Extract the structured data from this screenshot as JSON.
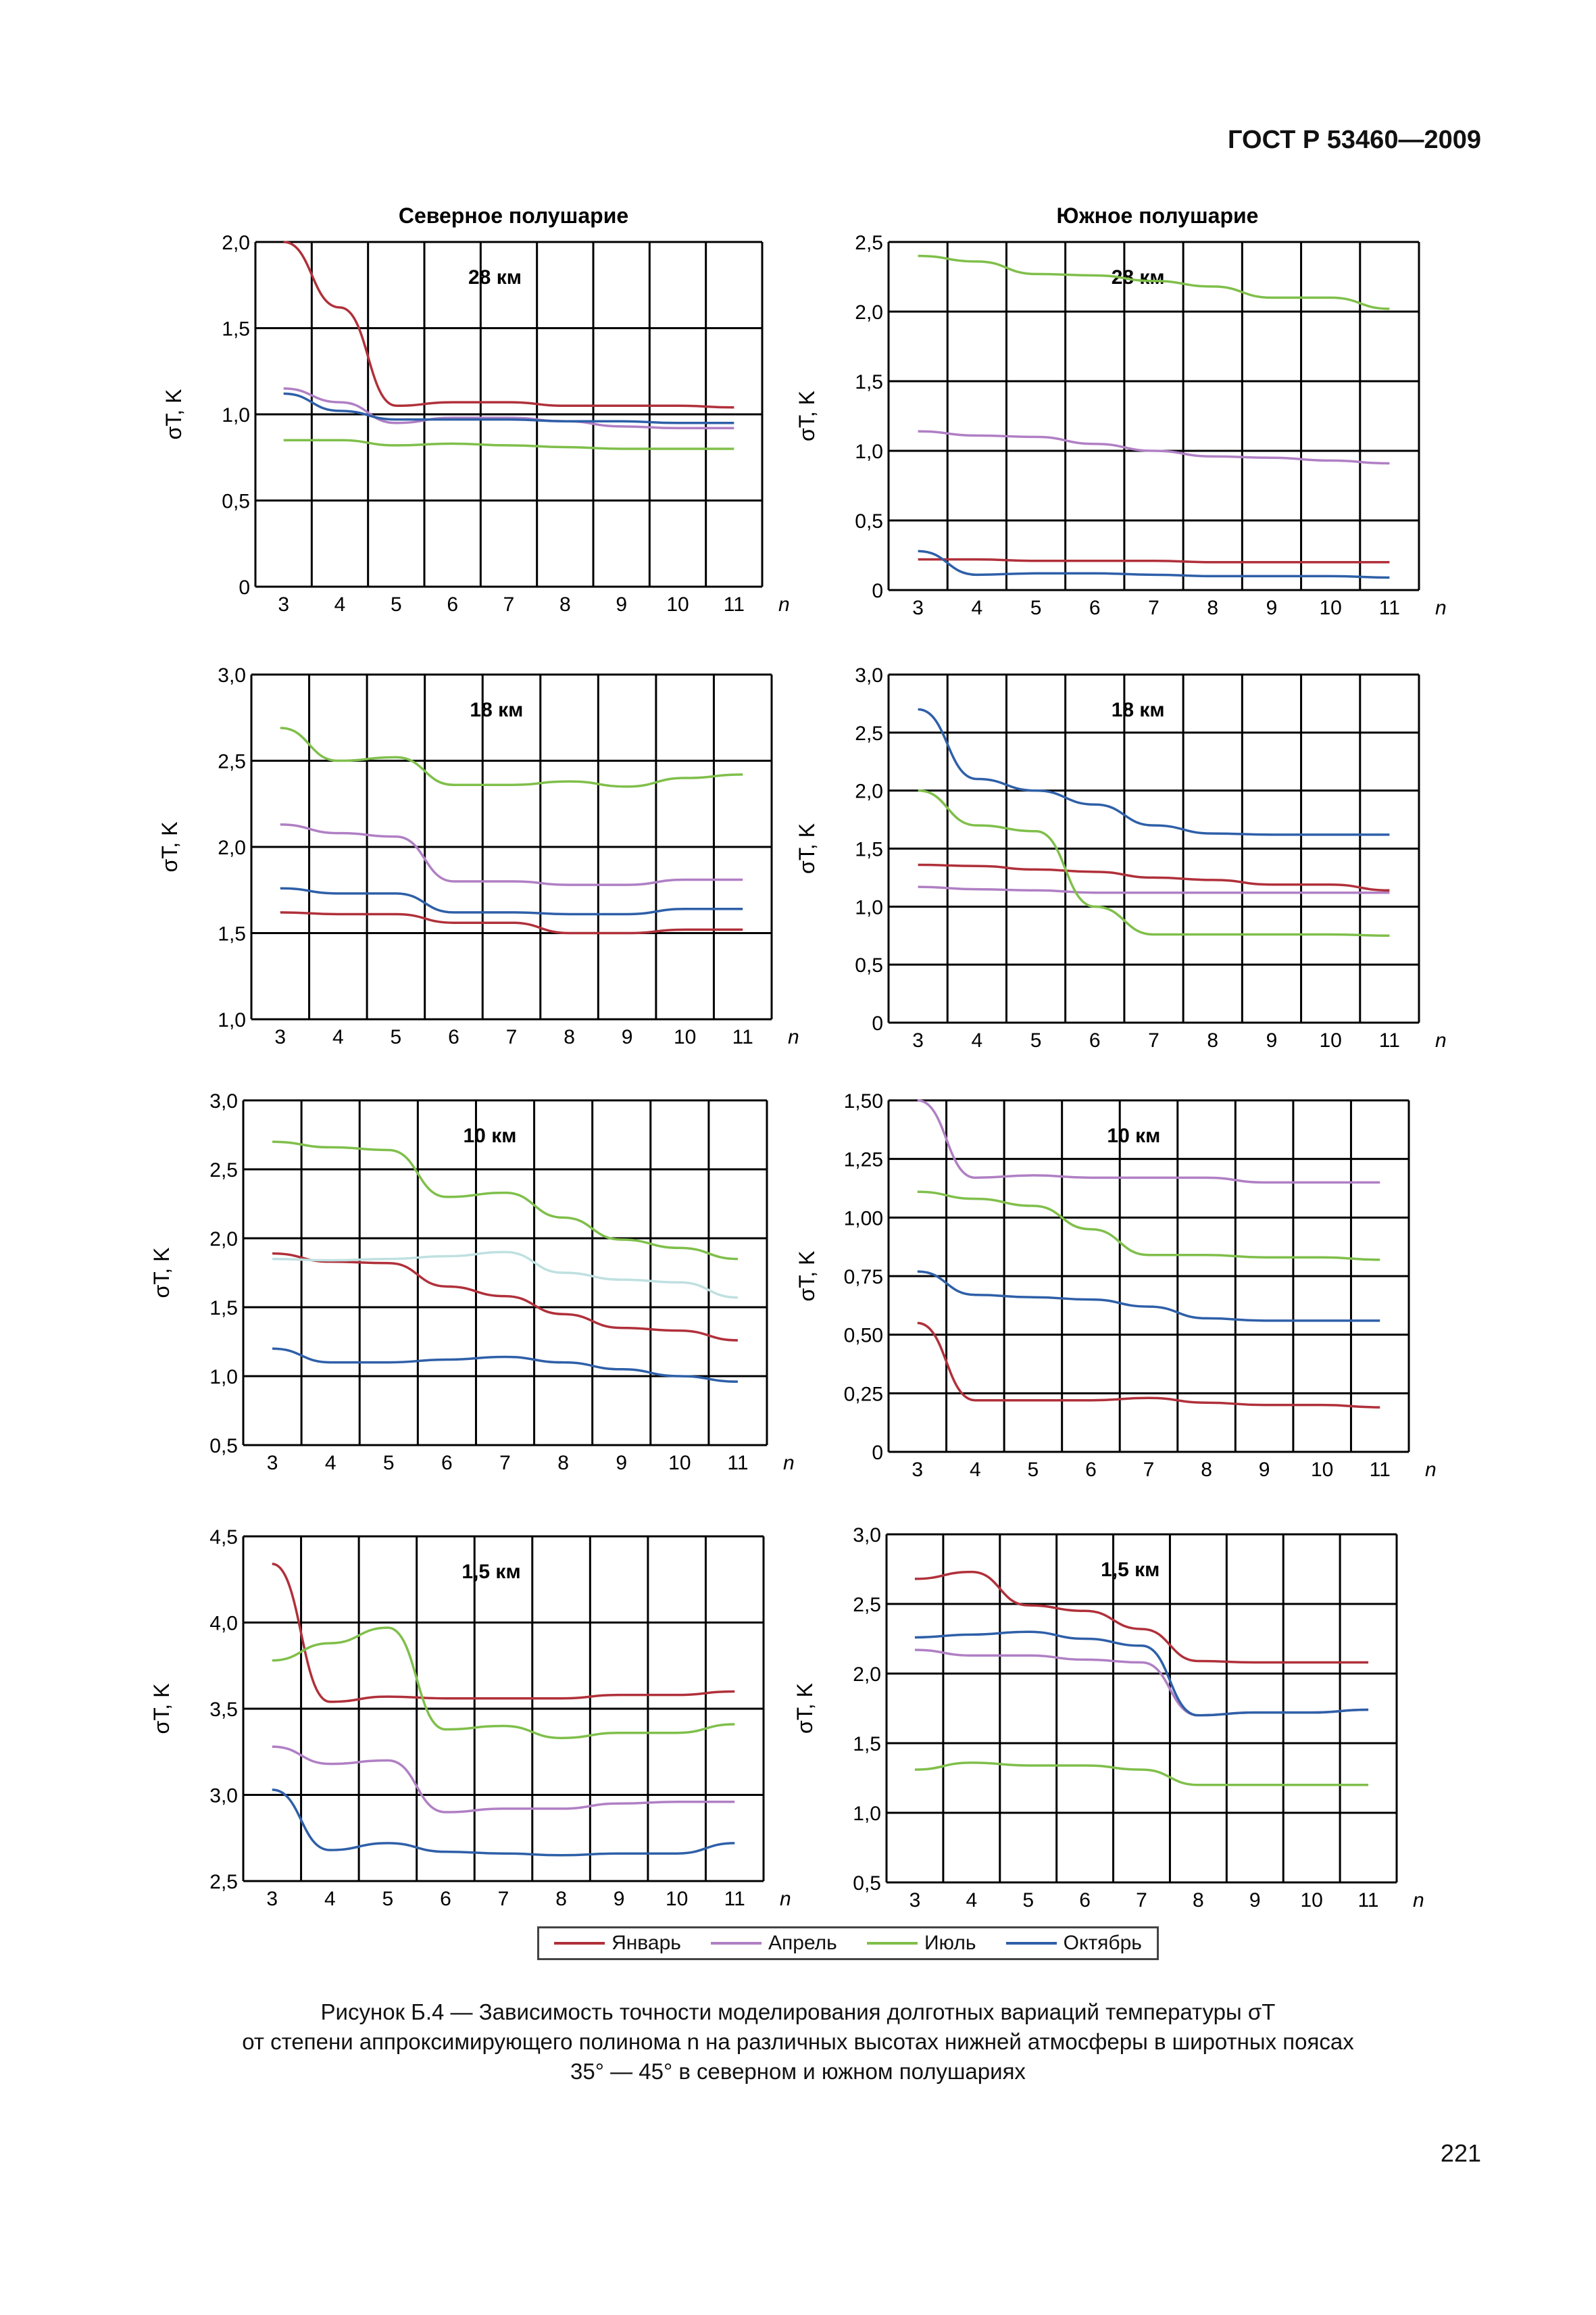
{
  "header": {
    "standard": "ГОСТ Р 53460—2009"
  },
  "columns": {
    "north": "Северное полушарие",
    "south": "Южное полушарие"
  },
  "axis": {
    "ylabel": "σT, K",
    "xlabel": "n"
  },
  "colors": {
    "january": "#b0303a",
    "april": "#b07fc4",
    "july": "#7fbf4a",
    "october": "#2e5fa8",
    "july_10km_light": "#bfe0e0"
  },
  "legend": {
    "items": [
      "Январь",
      "Апрель",
      "Июль",
      "Октябрь"
    ]
  },
  "caption": {
    "line1": "Рисунок  Б.4 — Зависимость точности моделирования долготных вариаций температуры σT",
    "line2": "от степени аппроксимирующего полинома n на различных высотах нижней атмосферы в широтных поясах",
    "line3": "35° — 45° в северном и южном полушариях"
  },
  "page_number": "221",
  "chart_data": [
    {
      "type": "line",
      "title": "28 км",
      "hemisphere": "north",
      "x": [
        3,
        4,
        5,
        6,
        7,
        8,
        9,
        10,
        11
      ],
      "ylim": [
        0,
        2.0
      ],
      "yticks": [
        "0",
        "0,5",
        "1,0",
        "1,5",
        "2,0"
      ],
      "series": [
        {
          "name": "Январь",
          "values": [
            2.0,
            1.62,
            1.05,
            1.07,
            1.07,
            1.05,
            1.05,
            1.05,
            1.04
          ]
        },
        {
          "name": "Апрель",
          "values": [
            1.15,
            1.07,
            0.95,
            0.98,
            0.98,
            0.96,
            0.93,
            0.92,
            0.92
          ]
        },
        {
          "name": "Июль",
          "values": [
            0.85,
            0.85,
            0.82,
            0.83,
            0.82,
            0.81,
            0.8,
            0.8,
            0.8
          ]
        },
        {
          "name": "Октябрь",
          "values": [
            1.12,
            1.02,
            0.97,
            0.97,
            0.97,
            0.96,
            0.96,
            0.95,
            0.95
          ]
        }
      ]
    },
    {
      "type": "line",
      "title": "28 км",
      "hemisphere": "south",
      "x": [
        3,
        4,
        5,
        6,
        7,
        8,
        9,
        10,
        11
      ],
      "ylim": [
        0,
        2.5
      ],
      "yticks": [
        "0",
        "0,5",
        "1,0",
        "1,5",
        "2,0",
        "2,5"
      ],
      "series": [
        {
          "name": "Январь",
          "values": [
            0.22,
            0.22,
            0.21,
            0.21,
            0.21,
            0.2,
            0.2,
            0.2,
            0.2
          ]
        },
        {
          "name": "Апрель",
          "values": [
            1.14,
            1.11,
            1.1,
            1.05,
            1.0,
            0.96,
            0.95,
            0.93,
            0.91
          ]
        },
        {
          "name": "Июль",
          "values": [
            2.4,
            2.36,
            2.27,
            2.26,
            2.22,
            2.18,
            2.1,
            2.1,
            2.02
          ]
        },
        {
          "name": "Октябрь",
          "values": [
            0.28,
            0.11,
            0.12,
            0.12,
            0.11,
            0.1,
            0.1,
            0.1,
            0.09
          ]
        }
      ]
    },
    {
      "type": "line",
      "title": "18 км",
      "hemisphere": "north",
      "x": [
        3,
        4,
        5,
        6,
        7,
        8,
        9,
        10,
        11
      ],
      "ylim": [
        1.0,
        3.0
      ],
      "yticks": [
        "1,0",
        "1,5",
        "2,0",
        "2,5",
        "3,0"
      ],
      "series": [
        {
          "name": "Январь",
          "values": [
            1.62,
            1.61,
            1.61,
            1.56,
            1.56,
            1.5,
            1.5,
            1.52,
            1.52
          ]
        },
        {
          "name": "Апрель",
          "values": [
            2.13,
            2.08,
            2.06,
            1.8,
            1.8,
            1.78,
            1.78,
            1.81,
            1.81
          ]
        },
        {
          "name": "Июль",
          "values": [
            2.69,
            2.5,
            2.52,
            2.36,
            2.36,
            2.38,
            2.35,
            2.4,
            2.42
          ]
        },
        {
          "name": "Октябрь",
          "values": [
            1.76,
            1.73,
            1.73,
            1.62,
            1.62,
            1.61,
            1.61,
            1.64,
            1.64
          ]
        }
      ]
    },
    {
      "type": "line",
      "title": "18 км",
      "hemisphere": "south",
      "x": [
        3,
        4,
        5,
        6,
        7,
        8,
        9,
        10,
        11
      ],
      "ylim": [
        0,
        3.0
      ],
      "yticks": [
        "0",
        "0,5",
        "1,0",
        "1,5",
        "2,0",
        "2,5",
        "3,0"
      ],
      "series": [
        {
          "name": "Январь",
          "values": [
            1.36,
            1.35,
            1.32,
            1.3,
            1.25,
            1.23,
            1.19,
            1.19,
            1.14
          ]
        },
        {
          "name": "Апрель",
          "values": [
            1.17,
            1.15,
            1.14,
            1.12,
            1.12,
            1.12,
            1.12,
            1.12,
            1.12
          ]
        },
        {
          "name": "Июль",
          "values": [
            2.0,
            1.7,
            1.65,
            1.0,
            0.76,
            0.76,
            0.76,
            0.76,
            0.75
          ]
        },
        {
          "name": "Октябрь",
          "values": [
            2.7,
            2.1,
            2.0,
            1.88,
            1.7,
            1.63,
            1.62,
            1.62,
            1.62
          ]
        }
      ]
    },
    {
      "type": "line",
      "title": "10 км",
      "hemisphere": "north",
      "x": [
        3,
        4,
        5,
        6,
        7,
        8,
        9,
        10,
        11
      ],
      "ylim": [
        0.5,
        3.0
      ],
      "yticks": [
        "0,5",
        "1,0",
        "1,5",
        "2,0",
        "2,5",
        "3,0"
      ],
      "series": [
        {
          "name": "Январь",
          "values": [
            1.89,
            1.83,
            1.82,
            1.65,
            1.58,
            1.45,
            1.35,
            1.33,
            1.26
          ]
        },
        {
          "name": "Июль",
          "values": [
            2.7,
            2.66,
            2.64,
            2.3,
            2.33,
            2.15,
            1.99,
            1.93,
            1.85
          ]
        },
        {
          "name": "Июль (светлая)",
          "values": [
            1.85,
            1.84,
            1.85,
            1.87,
            1.9,
            1.75,
            1.7,
            1.68,
            1.57
          ]
        },
        {
          "name": "Октябрь",
          "values": [
            1.2,
            1.1,
            1.1,
            1.12,
            1.14,
            1.1,
            1.05,
            1.0,
            0.96
          ]
        }
      ]
    },
    {
      "type": "line",
      "title": "10 км",
      "hemisphere": "south",
      "x": [
        3,
        4,
        5,
        6,
        7,
        8,
        9,
        10,
        11
      ],
      "ylim": [
        0,
        1.5
      ],
      "yticks": [
        "0",
        "0,25",
        "0,50",
        "0,75",
        "1,00",
        "1,25",
        "1,50"
      ],
      "series": [
        {
          "name": "Январь",
          "values": [
            0.55,
            0.22,
            0.22,
            0.22,
            0.23,
            0.21,
            0.2,
            0.2,
            0.19
          ]
        },
        {
          "name": "Апрель",
          "values": [
            1.5,
            1.17,
            1.18,
            1.17,
            1.17,
            1.17,
            1.15,
            1.15,
            1.15
          ]
        },
        {
          "name": "Июль",
          "values": [
            1.11,
            1.08,
            1.05,
            0.95,
            0.84,
            0.84,
            0.83,
            0.83,
            0.82
          ]
        },
        {
          "name": "Октябрь",
          "values": [
            0.77,
            0.67,
            0.66,
            0.65,
            0.62,
            0.57,
            0.56,
            0.56,
            0.56
          ]
        }
      ]
    },
    {
      "type": "line",
      "title": "1,5 км",
      "hemisphere": "north",
      "x": [
        3,
        4,
        5,
        6,
        7,
        8,
        9,
        10,
        11
      ],
      "ylim": [
        2.5,
        4.5
      ],
      "yticks": [
        "2,5",
        "3,0",
        "3,5",
        "4,0",
        "4,5"
      ],
      "series": [
        {
          "name": "Январь",
          "values": [
            4.34,
            3.54,
            3.57,
            3.56,
            3.56,
            3.56,
            3.58,
            3.58,
            3.6
          ]
        },
        {
          "name": "Апрель",
          "values": [
            3.28,
            3.18,
            3.2,
            2.9,
            2.92,
            2.92,
            2.95,
            2.96,
            2.96
          ]
        },
        {
          "name": "Июль",
          "values": [
            3.78,
            3.88,
            3.97,
            3.38,
            3.4,
            3.33,
            3.36,
            3.36,
            3.41
          ]
        },
        {
          "name": "Октябрь",
          "values": [
            3.03,
            2.68,
            2.72,
            2.67,
            2.66,
            2.65,
            2.66,
            2.66,
            2.72
          ]
        }
      ]
    },
    {
      "type": "line",
      "title": "1,5 км",
      "hemisphere": "south",
      "x": [
        3,
        4,
        5,
        6,
        7,
        8,
        9,
        10,
        11
      ],
      "ylim": [
        0.5,
        3.0
      ],
      "yticks": [
        "0,5",
        "1,0",
        "1,5",
        "2,0",
        "2,5",
        "3,0"
      ],
      "series": [
        {
          "name": "Январь",
          "values": [
            2.68,
            2.73,
            2.49,
            2.45,
            2.32,
            2.09,
            2.08,
            2.08,
            2.08
          ]
        },
        {
          "name": "Апрель",
          "values": [
            2.17,
            2.13,
            2.13,
            2.1,
            2.08,
            1.7,
            1.72,
            1.72,
            1.74
          ]
        },
        {
          "name": "Июль",
          "values": [
            1.31,
            1.36,
            1.34,
            1.34,
            1.31,
            1.2,
            1.2,
            1.2,
            1.2
          ]
        },
        {
          "name": "Октябрь",
          "values": [
            2.26,
            2.28,
            2.3,
            2.25,
            2.2,
            1.7,
            1.72,
            1.72,
            1.74
          ]
        }
      ]
    }
  ]
}
